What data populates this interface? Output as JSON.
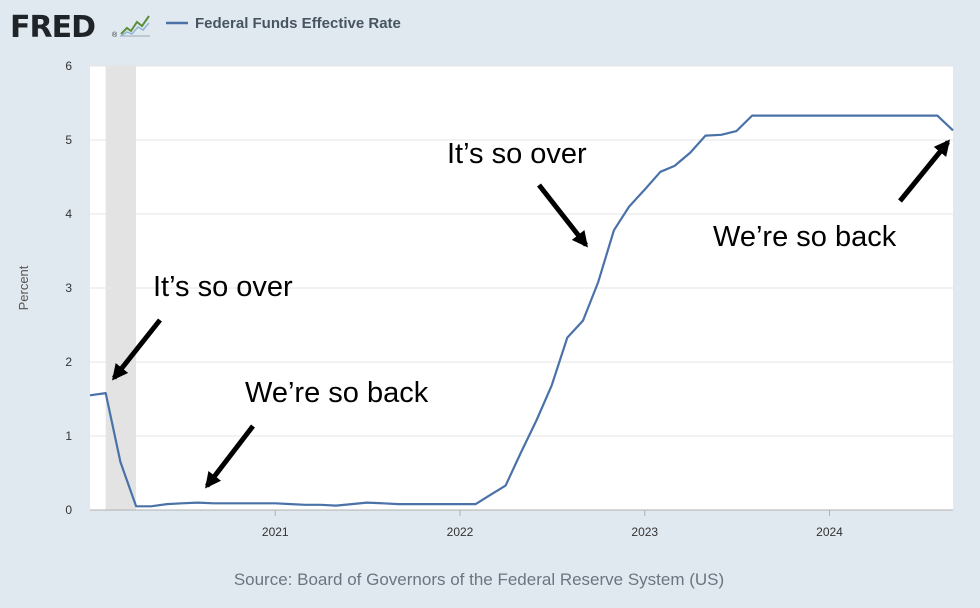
{
  "header": {
    "logo_text": "FRED",
    "logo_mark": "®",
    "logo_icon": "sparkline-chart-icon",
    "legend_label": "Federal Funds Effective Rate"
  },
  "colors": {
    "series": "#4a72a8",
    "plot_bg": "#ffffff",
    "page_bg": "#e1e9f0",
    "grid": "#e4e4e4",
    "recession": "#e3e3e3",
    "annotation": "#000000"
  },
  "source": "Source: Board of Governors of the Federal Reserve System (US)",
  "chart_data": {
    "type": "line",
    "title": "",
    "xlabel": "",
    "ylabel": "Percent",
    "xlim": [
      "2020-01-01",
      "2024-09-01"
    ],
    "ylim": [
      0,
      6
    ],
    "yticks": [
      0,
      1,
      2,
      3,
      4,
      5,
      6
    ],
    "xticks": [
      {
        "date": "2021-01-01",
        "label": "2021"
      },
      {
        "date": "2022-01-01",
        "label": "2022"
      },
      {
        "date": "2023-01-01",
        "label": "2023"
      },
      {
        "date": "2024-01-01",
        "label": "2024"
      }
    ],
    "grid": "horizontal",
    "recession_band": [
      "2020-02-01",
      "2020-04-01"
    ],
    "series": [
      {
        "name": "Federal Funds Effective Rate",
        "x": [
          "2020-01-01",
          "2020-02-01",
          "2020-03-01",
          "2020-04-01",
          "2020-05-01",
          "2020-06-01",
          "2020-07-01",
          "2020-08-01",
          "2020-09-01",
          "2020-10-01",
          "2020-11-01",
          "2020-12-01",
          "2021-01-01",
          "2021-02-01",
          "2021-03-01",
          "2021-04-01",
          "2021-05-01",
          "2021-06-01",
          "2021-07-01",
          "2021-08-01",
          "2021-09-01",
          "2021-10-01",
          "2021-11-01",
          "2021-12-01",
          "2022-01-01",
          "2022-02-01",
          "2022-03-01",
          "2022-04-01",
          "2022-05-01",
          "2022-06-01",
          "2022-07-01",
          "2022-08-01",
          "2022-09-01",
          "2022-10-01",
          "2022-11-01",
          "2022-12-01",
          "2023-01-01",
          "2023-02-01",
          "2023-03-01",
          "2023-04-01",
          "2023-05-01",
          "2023-06-01",
          "2023-07-01",
          "2023-08-01",
          "2023-09-01",
          "2023-10-01",
          "2023-11-01",
          "2023-12-01",
          "2024-01-01",
          "2024-02-01",
          "2024-03-01",
          "2024-04-01",
          "2024-05-01",
          "2024-06-01",
          "2024-07-01",
          "2024-08-01",
          "2024-09-01"
        ],
        "values": [
          1.55,
          1.58,
          0.65,
          0.05,
          0.05,
          0.08,
          0.09,
          0.1,
          0.09,
          0.09,
          0.09,
          0.09,
          0.09,
          0.08,
          0.07,
          0.07,
          0.06,
          0.08,
          0.1,
          0.09,
          0.08,
          0.08,
          0.08,
          0.08,
          0.08,
          0.08,
          0.2,
          0.33,
          0.77,
          1.21,
          1.68,
          2.33,
          2.56,
          3.08,
          3.78,
          4.1,
          4.33,
          4.57,
          4.65,
          4.83,
          5.06,
          5.07,
          5.12,
          5.33,
          5.33,
          5.33,
          5.33,
          5.33,
          5.33,
          5.33,
          5.33,
          5.33,
          5.33,
          5.33,
          5.33,
          5.33,
          5.13
        ]
      }
    ],
    "annotations": [
      {
        "text": "It’s so over",
        "date": "2020-02-01",
        "value": 1.58
      },
      {
        "text": "We’re so back",
        "date": "2020-08-01",
        "value": 0.1
      },
      {
        "text": "It’s so over",
        "date": "2022-09-01",
        "value": 2.56
      },
      {
        "text": "We’re so back",
        "date": "2024-09-01",
        "value": 5.13
      }
    ]
  }
}
